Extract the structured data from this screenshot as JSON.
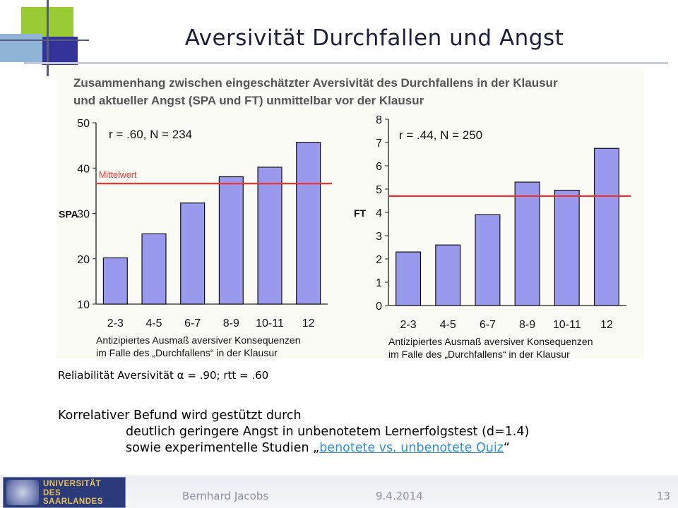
{
  "slide": {
    "title": "Aversivität Durchfallen und Angst",
    "figure_heading_line1": "Zusammenhang zwischen eingeschätzter Aversivität des Durchfallens in der Klausur",
    "figure_heading_line2": "und aktueller Angst (SPA und FT) unmittelbar vor der Klausur",
    "reliability_prefix": "Reliabilität Aversivität ",
    "alpha_symbol": "α",
    "reliability_suffix": " = .90;  rtt = .60",
    "body_line1": "Korrelativer Befund wird gestützt durch",
    "body_line2": "deutlich geringere Angst in unbenotetem Lernerfolgstest (d=1.4)",
    "body_line3_prefix": "sowie experimentelle Studien „",
    "body_line3_link": "benotete vs. unbenotete Quiz",
    "body_line3_suffix": "“",
    "footer_author": "Bernhard Jacobs",
    "footer_date": "9.4.2014",
    "page_number": "13",
    "logo_line1": "UNIVERSITÄT",
    "logo_line2": "DES",
    "logo_line3": "SAARLANDES"
  },
  "colors": {
    "bar_fill": "#9999ee",
    "bar_stroke": "#111111",
    "mean_line": "#ee3333",
    "link": "#2f8fd6",
    "deco_green": "#99cc33",
    "deco_blue": "#333399"
  },
  "chart_data": [
    {
      "type": "bar",
      "title": "",
      "annotation": "r = .60,  N = 234",
      "mean_label": "Mittelwert",
      "mean_value": 36.6,
      "ylabel": "SPA",
      "xlabel_line1": "Antizipiertes Ausmaß aversiver Konsequenzen",
      "xlabel_line2": "im Falle des „Durchfallens“ in der Klausur",
      "categories": [
        "2-3",
        "4-5",
        "6-7",
        "8-9",
        "10-11",
        "12"
      ],
      "values": [
        20.2,
        25.5,
        32.3,
        38.1,
        40.2,
        45.7
      ],
      "ylim": [
        10,
        50
      ],
      "yticks": [
        "10",
        "20",
        "30",
        "40",
        "50"
      ],
      "ytick_values": [
        10,
        20,
        30,
        40,
        50
      ],
      "grid": false
    },
    {
      "type": "bar",
      "title": "",
      "annotation": "r = .44,  N = 250",
      "mean_label": "",
      "mean_value": 4.7,
      "ylabel": "FT",
      "xlabel_line1": "Antizipiertes Ausmaß aversiver Konsequenzen",
      "xlabel_line2": "im Falle des „Durchfallens“ in der Klausur",
      "categories": [
        "2-3",
        "4-5",
        "6-7",
        "8-9",
        "10-11",
        "12"
      ],
      "values": [
        2.3,
        2.6,
        3.9,
        5.3,
        4.95,
        6.75
      ],
      "ylim": [
        0,
        8
      ],
      "yticks": [
        "0",
        "1",
        "2",
        "3",
        "4",
        "5",
        "6",
        "7",
        "8"
      ],
      "ytick_values": [
        0,
        1,
        2,
        3,
        4,
        5,
        6,
        7,
        8
      ],
      "grid": false
    }
  ]
}
